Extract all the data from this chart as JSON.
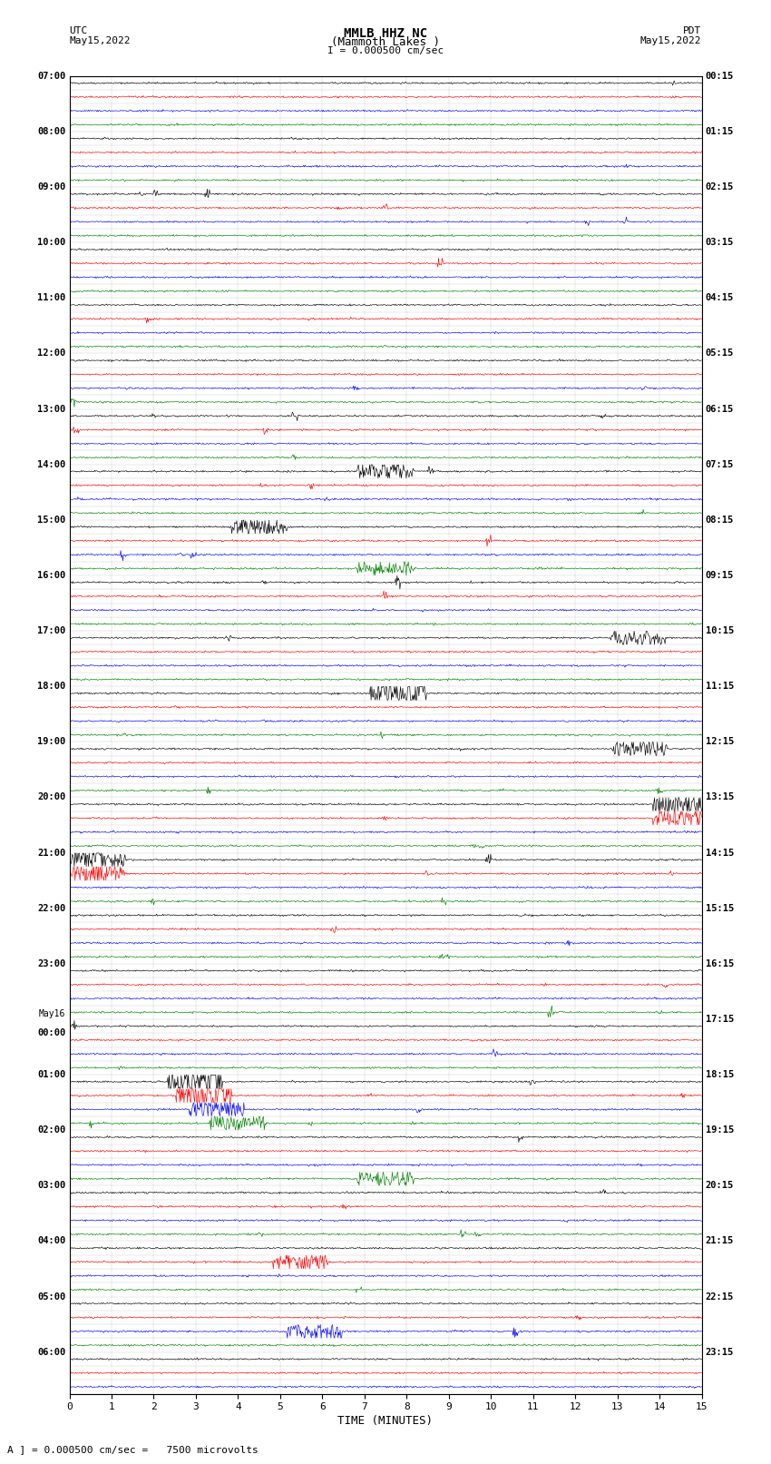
{
  "title_line1": "MMLB HHZ NC",
  "title_line2": "(Mammoth Lakes )",
  "title_scale": "I = 0.000500 cm/sec",
  "left_header_line1": "UTC",
  "left_header_line2": "May15,2022",
  "right_header_line1": "PDT",
  "right_header_line2": "May15,2022",
  "xlabel": "TIME (MINUTES)",
  "footer": "A ] = 0.000500 cm/sec =   7500 microvolts",
  "x_min": 0,
  "x_max": 15,
  "bg_color": "#ffffff",
  "grid_color": "#aaaaaa",
  "utc_labels": [
    "07:00",
    "",
    "",
    "",
    "08:00",
    "",
    "",
    "",
    "09:00",
    "",
    "",
    "",
    "10:00",
    "",
    "",
    "",
    "11:00",
    "",
    "",
    "",
    "12:00",
    "",
    "",
    "",
    "13:00",
    "",
    "",
    "",
    "14:00",
    "",
    "",
    "",
    "15:00",
    "",
    "",
    "",
    "16:00",
    "",
    "",
    "",
    "17:00",
    "",
    "",
    "",
    "18:00",
    "",
    "",
    "",
    "19:00",
    "",
    "",
    "",
    "20:00",
    "",
    "",
    "",
    "21:00",
    "",
    "",
    "",
    "22:00",
    "",
    "",
    "",
    "23:00",
    "",
    "",
    "",
    "May16",
    "00:00",
    "",
    "",
    "01:00",
    "",
    "",
    "",
    "02:00",
    "",
    "",
    "",
    "03:00",
    "",
    "",
    "",
    "04:00",
    "",
    "",
    "",
    "05:00",
    "",
    "",
    "",
    "06:00",
    "",
    ""
  ],
  "pdt_labels": [
    "00:15",
    "",
    "",
    "",
    "01:15",
    "",
    "",
    "",
    "02:15",
    "",
    "",
    "",
    "03:15",
    "",
    "",
    "",
    "04:15",
    "",
    "",
    "",
    "05:15",
    "",
    "",
    "",
    "06:15",
    "",
    "",
    "",
    "07:15",
    "",
    "",
    "",
    "08:15",
    "",
    "",
    "",
    "09:15",
    "",
    "",
    "",
    "10:15",
    "",
    "",
    "",
    "11:15",
    "",
    "",
    "",
    "12:15",
    "",
    "",
    "",
    "13:15",
    "",
    "",
    "",
    "14:15",
    "",
    "",
    "",
    "15:15",
    "",
    "",
    "",
    "16:15",
    "",
    "",
    "",
    "17:15",
    "",
    "",
    "",
    "18:15",
    "",
    "",
    "",
    "19:15",
    "",
    "",
    "",
    "20:15",
    "",
    "",
    "",
    "21:15",
    "",
    "",
    "",
    "22:15",
    "",
    "",
    "",
    "23:15",
    "",
    ""
  ],
  "num_traces": 95,
  "trace_colors_cycle": [
    "black",
    "red",
    "blue",
    "green"
  ],
  "noise_amplitude": 0.12,
  "seed": 42,
  "event_traces": {
    "28": [
      7.5,
      3.0
    ],
    "32": [
      4.5,
      3.5
    ],
    "35": [
      7.5,
      2.5
    ],
    "40": [
      13.5,
      2.8
    ],
    "44": [
      7.8,
      6.0
    ],
    "48": [
      13.5,
      2.5
    ],
    "52": [
      14.5,
      5.0
    ],
    "53": [
      14.5,
      4.0
    ],
    "56": [
      0.3,
      4.0
    ],
    "57": [
      0.5,
      3.5
    ],
    "72": [
      3.0,
      7.0
    ],
    "73": [
      3.2,
      8.0
    ],
    "74": [
      3.5,
      4.0
    ],
    "75": [
      4.0,
      3.0
    ],
    "79": [
      7.5,
      2.5
    ],
    "85": [
      5.5,
      3.0
    ],
    "90": [
      5.8,
      2.5
    ]
  }
}
